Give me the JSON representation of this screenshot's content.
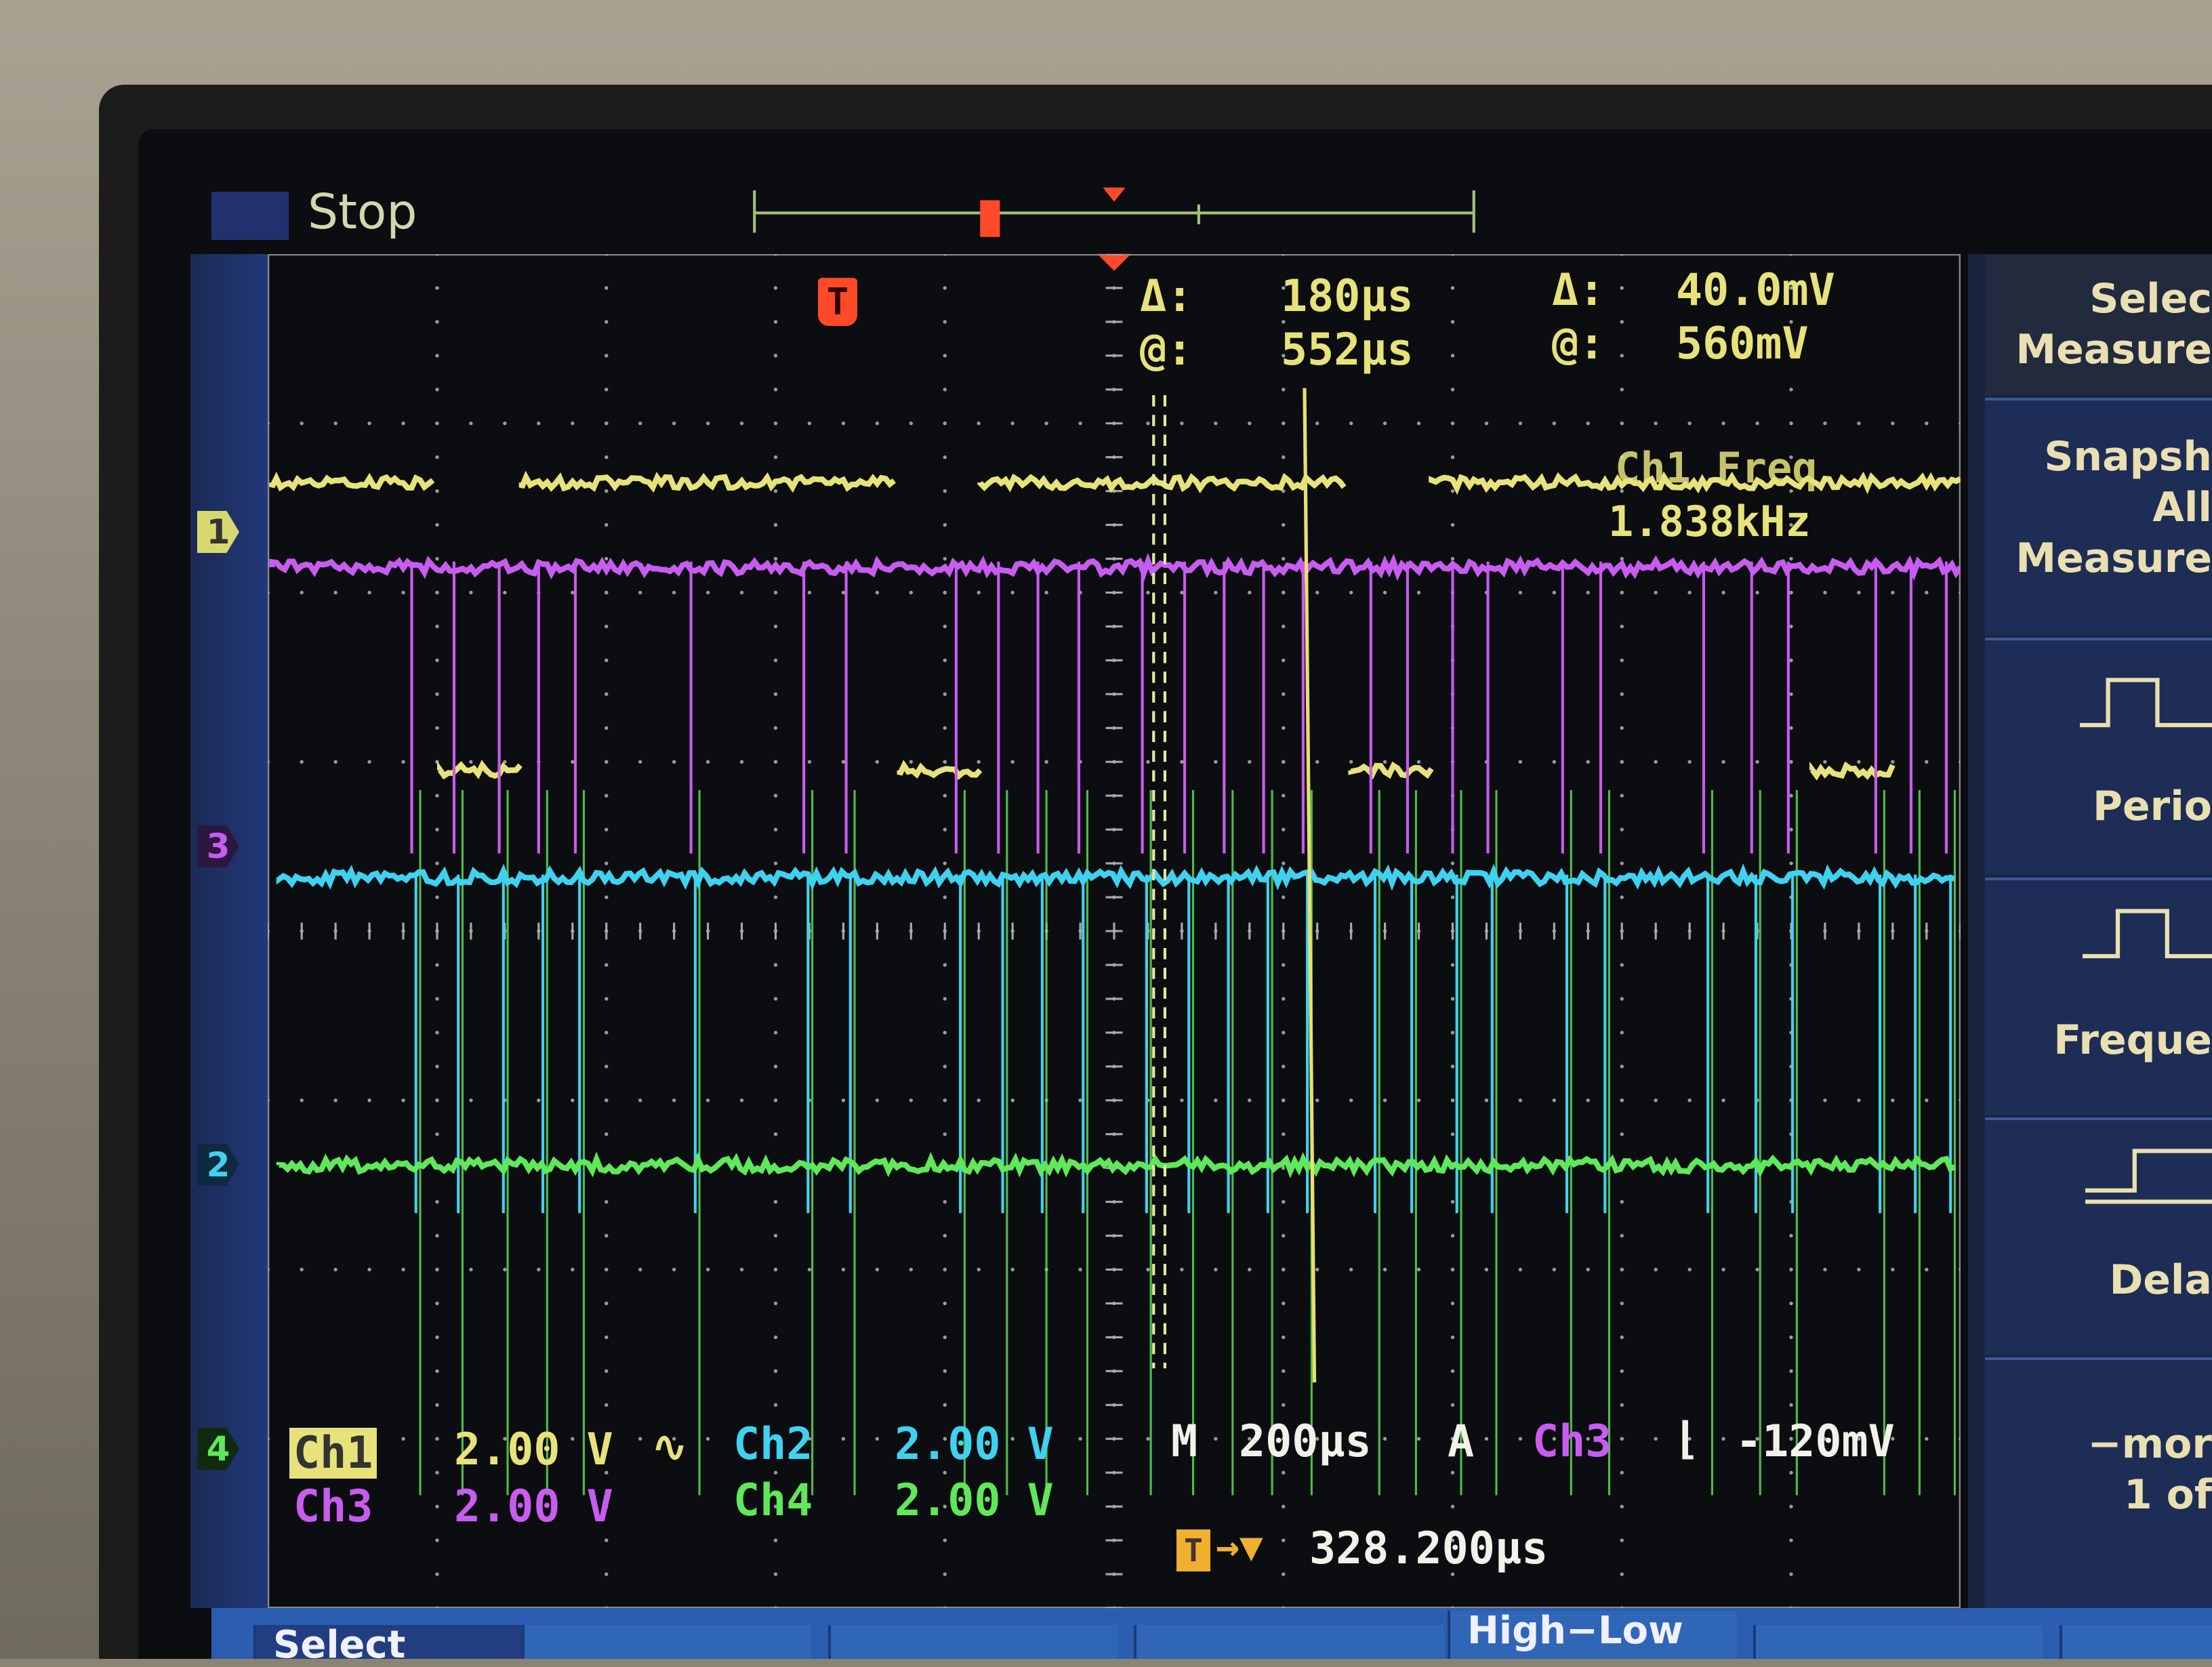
{
  "status": {
    "run_state": "Stop"
  },
  "cursor_readout": {
    "time_delta_label": "Δ:",
    "time_delta": "180µs",
    "time_at_label": "@:",
    "time_at": "552µs",
    "volt_delta_label": "Δ:",
    "volt_delta": "40.0mV",
    "volt_at_label": "@:",
    "volt_at": "560mV"
  },
  "measurement": {
    "label": "Ch1 Freq",
    "value": "1.838kHz"
  },
  "channel_markers": [
    {
      "label": "1",
      "color": "#e7e27a"
    },
    {
      "label": "3",
      "color": "#c85cf0"
    },
    {
      "label": "2",
      "color": "#3fd2f0"
    },
    {
      "label": "4",
      "color": "#5fe85a"
    }
  ],
  "channels": {
    "ch1": {
      "label": "Ch1",
      "scale": "2.00 V",
      "coupling_symbol": "∿"
    },
    "ch2": {
      "label": "Ch2",
      "scale": "2.00 V"
    },
    "ch3": {
      "label": "Ch3",
      "scale": "2.00 V"
    },
    "ch4": {
      "label": "Ch4",
      "scale": "2.00 V"
    }
  },
  "timebase": {
    "label": "M",
    "value": "200µs",
    "trigger_mode": "A",
    "trigger_source": "Ch3",
    "trigger_slope": "⌊",
    "trigger_level": "-120mV"
  },
  "trigger_position": {
    "value": "328.200µs"
  },
  "trigger_icon": "T",
  "side_menu": [
    {
      "lines": [
        "Selec",
        "Measure"
      ]
    },
    {
      "lines": [
        "Snapsh",
        "All",
        "Measure"
      ]
    },
    {
      "lines": [
        "Perio"
      ],
      "icon": "period-pulse-icon"
    },
    {
      "lines": [
        "Freque"
      ],
      "icon": "frequency-pulse-icon"
    },
    {
      "lines": [
        "Dela"
      ],
      "icon": "delay-edge-icon"
    },
    {
      "lines": [
        "−mor",
        "1 of"
      ]
    }
  ],
  "bottom_menu": [
    "Select",
    "",
    "",
    "",
    "High−Low",
    "",
    ""
  ],
  "colors": {
    "ch1": "#e7e27a",
    "ch2": "#3fd2f0",
    "ch3": "#c85cf0",
    "ch4": "#5fe85a",
    "trigger": "#ff4a2a"
  }
}
